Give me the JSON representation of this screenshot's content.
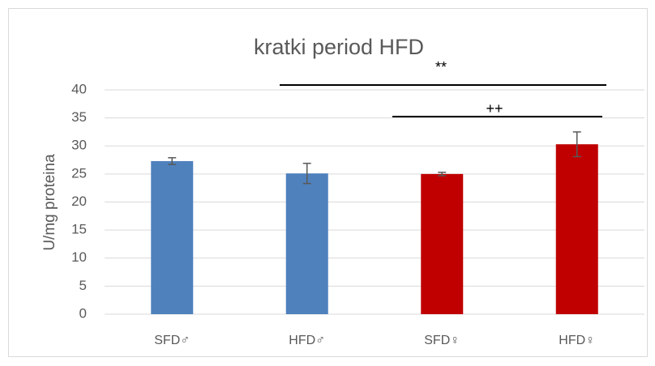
{
  "chart_data": {
    "type": "bar",
    "title": "kratki period HFD",
    "y_label": "U/mg proteina",
    "categories": [
      "SFD♂",
      "HFD♂",
      "SFD♀",
      "HFD♀"
    ],
    "values": [
      27.3,
      25.1,
      25.0,
      30.3
    ],
    "errors": [
      0.6,
      1.8,
      0.3,
      2.2
    ],
    "colors": [
      "#4f81bd",
      "#4f81bd",
      "#c00000",
      "#c00000"
    ],
    "ylim": [
      0,
      40
    ],
    "yticks": [
      0,
      5,
      10,
      15,
      20,
      25,
      30,
      35,
      40
    ],
    "grid": true,
    "annotations": [
      "**",
      "++"
    ]
  }
}
